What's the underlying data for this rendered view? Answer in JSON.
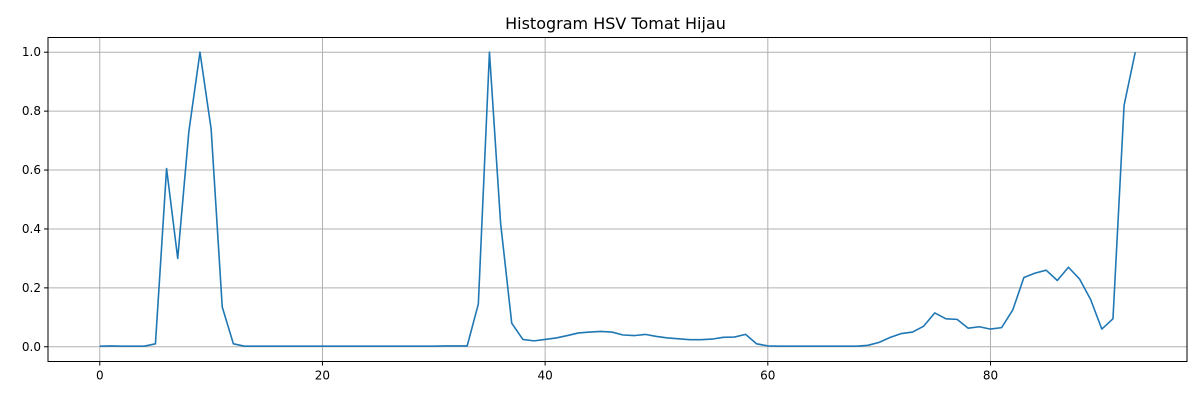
{
  "chart_data": {
    "type": "line",
    "title": "Histogram HSV Tomat Hijau",
    "xlabel": "",
    "ylabel": "",
    "xlim": [
      -4.65,
      97.65
    ],
    "ylim": [
      -0.05,
      1.05
    ],
    "xticks": [
      0,
      20,
      40,
      60,
      80
    ],
    "yticks": [
      0.0,
      0.2,
      0.4,
      0.6,
      0.8,
      1.0
    ],
    "xtick_labels": [
      "0",
      "20",
      "40",
      "60",
      "80"
    ],
    "ytick_labels": [
      "0.0",
      "0.2",
      "0.4",
      "0.6",
      "0.8",
      "1.0"
    ],
    "grid": true,
    "line_color": "#1f77b4",
    "series": [
      {
        "x": [
          0,
          1,
          2,
          3,
          4,
          5,
          6,
          7,
          8,
          9,
          10,
          11,
          12,
          13,
          14,
          15,
          16,
          17,
          18,
          19,
          20,
          21,
          22,
          23,
          24,
          25,
          26,
          27,
          28,
          29,
          30,
          31,
          32,
          33,
          34,
          35,
          36,
          37,
          38,
          39,
          40,
          41,
          42,
          43,
          44,
          45,
          46,
          47,
          48,
          49,
          50,
          51,
          52,
          53,
          54,
          55,
          56,
          57,
          58,
          59,
          60,
          61,
          62,
          63,
          64,
          65,
          66,
          67,
          68,
          69,
          70,
          71,
          72,
          73,
          74,
          75,
          76,
          77,
          78,
          79,
          80,
          81,
          82,
          83,
          84,
          85,
          86,
          87,
          88,
          89,
          90,
          91,
          92,
          93
        ],
        "values": [
          0.002,
          0.003,
          0.002,
          0.002,
          0.002,
          0.01,
          0.605,
          0.3,
          0.73,
          1.0,
          0.74,
          0.135,
          0.01,
          0.002,
          0.002,
          0.002,
          0.002,
          0.002,
          0.002,
          0.002,
          0.002,
          0.002,
          0.002,
          0.002,
          0.002,
          0.002,
          0.002,
          0.002,
          0.002,
          0.002,
          0.002,
          0.003,
          0.003,
          0.003,
          0.145,
          1.0,
          0.42,
          0.08,
          0.025,
          0.02,
          0.025,
          0.03,
          0.038,
          0.047,
          0.05,
          0.052,
          0.05,
          0.04,
          0.038,
          0.042,
          0.035,
          0.03,
          0.027,
          0.024,
          0.024,
          0.026,
          0.032,
          0.033,
          0.042,
          0.01,
          0.003,
          0.002,
          0.002,
          0.002,
          0.002,
          0.002,
          0.002,
          0.002,
          0.002,
          0.005,
          0.015,
          0.032,
          0.045,
          0.05,
          0.07,
          0.115,
          0.095,
          0.093,
          0.063,
          0.068,
          0.06,
          0.065,
          0.125,
          0.235,
          0.25,
          0.26,
          0.225,
          0.27,
          0.23,
          0.16,
          0.06,
          0.095,
          0.82,
          1.0
        ]
      }
    ]
  }
}
